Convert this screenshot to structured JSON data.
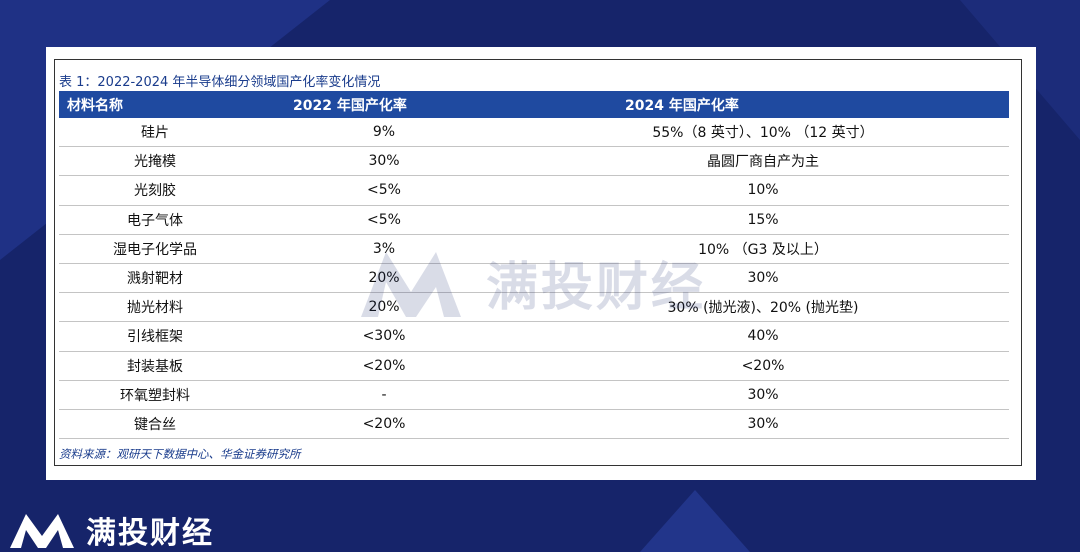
{
  "caption": "表 1：2022-2024 年半导体细分领域国产化率变化情况",
  "headers": [
    "材料名称",
    "2022 年国产化率",
    "2024 年国产化率"
  ],
  "rows": [
    [
      "硅片",
      "9%",
      "55%（8 英寸）、10%  （12 英寸）"
    ],
    [
      "光掩模",
      "30%",
      "晶圆厂商自产为主"
    ],
    [
      "光刻胶",
      "<5%",
      "10%"
    ],
    [
      "电子气体",
      "<5%",
      "15%"
    ],
    [
      "湿电子化学品",
      "3%",
      "10%  （G3 及以上）"
    ],
    [
      "溅射靶材",
      "20%",
      "30%"
    ],
    [
      "抛光材料",
      "20%",
      "30% (抛光液)、20% (抛光垫)"
    ],
    [
      "引线框架",
      "<30%",
      "40%"
    ],
    [
      "封装基板",
      "<20%",
      "<20%"
    ],
    [
      "环氧塑封料",
      "-",
      "30%"
    ],
    [
      "键合丝",
      "<20%",
      "30%"
    ]
  ],
  "source": "资料来源：观研天下数据中心、华金证券研究所",
  "watermark": "满投财经",
  "brand": "满投财经",
  "colors": {
    "header_bg": "#1f4aa0",
    "page_bg": "#16246a",
    "caption": "#1a3c8c"
  }
}
